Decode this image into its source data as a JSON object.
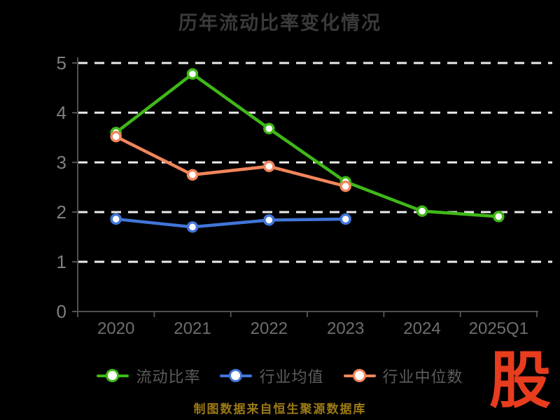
{
  "title": {
    "text": "历年流动比率变化情况"
  },
  "chart_data": {
    "type": "line",
    "title": "历年流动比率变化情况",
    "categories": [
      "2020",
      "2021",
      "2022",
      "2023",
      "2024",
      "2025Q1"
    ],
    "series": [
      {
        "name": "流动比率",
        "color": "#3fb818",
        "values": [
          3.6,
          4.78,
          3.68,
          2.61,
          2.02,
          1.91
        ]
      },
      {
        "name": "行业均值",
        "color": "#4175d8",
        "values": [
          1.86,
          1.7,
          1.84,
          1.86,
          null,
          null
        ]
      },
      {
        "name": "行业中位数",
        "color": "#f2855c",
        "values": [
          3.52,
          2.75,
          2.92,
          2.52,
          null,
          null
        ]
      }
    ],
    "xlabel": "",
    "ylabel": "",
    "ylim": [
      0,
      5
    ],
    "yticks": [
      0,
      1,
      2,
      3,
      4,
      5
    ],
    "grid": "horizontal-dashed",
    "legend_position": "bottom",
    "marker": "white-filled-circle"
  },
  "caption": {
    "text": "制图数据来自恒生聚源数据库"
  },
  "logo": {
    "text": "股",
    "color": "#e83c1e"
  },
  "colors": {
    "background": "#000000",
    "gridline": "#ececec",
    "axis": "#4f4f4f",
    "y_tick_label": "#7f7f7f",
    "x_tick_label": "#6e6e6e",
    "title": "#3a3a3a",
    "legend_text": "#5c5c5c",
    "caption_text": "#9c7a15"
  }
}
